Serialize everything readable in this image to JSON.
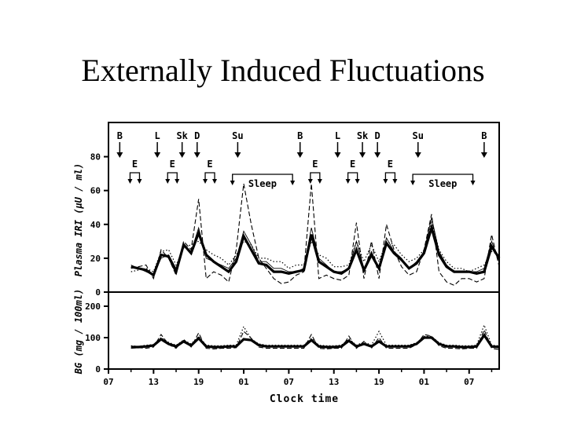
{
  "slide": {
    "title": "Externally Induced Fluctuations"
  },
  "chart_data": {
    "type": "line",
    "xlabel": "Clock time",
    "x_unit": "hours from 07:00 on day 1",
    "x_ticks": [
      {
        "t": 0,
        "label": "07"
      },
      {
        "t": 6,
        "label": "13"
      },
      {
        "t": 12,
        "label": "19"
      },
      {
        "t": 18,
        "label": "01"
      },
      {
        "t": 24,
        "label": "07"
      },
      {
        "t": 30,
        "label": "13"
      },
      {
        "t": 36,
        "label": "19"
      },
      {
        "t": 42,
        "label": "01"
      },
      {
        "t": 48,
        "label": "07"
      }
    ],
    "xlim": [
      0,
      52
    ],
    "meals": [
      {
        "label": "B",
        "t": 1.5
      },
      {
        "label": "L",
        "t": 6.5
      },
      {
        "label": "Sk",
        "t": 9.8
      },
      {
        "label": "D",
        "t": 11.8
      },
      {
        "label": "Su",
        "t": 17.2
      },
      {
        "label": "B",
        "t": 25.5
      },
      {
        "label": "L",
        "t": 30.5
      },
      {
        "label": "Sk",
        "t": 33.8
      },
      {
        "label": "D",
        "t": 35.8
      },
      {
        "label": "Su",
        "t": 41.2
      },
      {
        "label": "B",
        "t": 50.0
      }
    ],
    "exercise": [
      {
        "label": "E",
        "t": 3.5
      },
      {
        "label": "E",
        "t": 8.5
      },
      {
        "label": "E",
        "t": 13.5
      },
      {
        "label": "E",
        "t": 27.5
      },
      {
        "label": "E",
        "t": 32.5
      },
      {
        "label": "E",
        "t": 37.5
      }
    ],
    "sleep": [
      {
        "label": "Sleep",
        "from": 16.5,
        "to": 24.5
      },
      {
        "label": "Sleep",
        "from": 40.5,
        "to": 48.5
      }
    ],
    "panels": [
      {
        "id": "iri",
        "ylabel": "Plasma IRI (µU / ml)",
        "ylim": [
          0,
          90
        ],
        "yticks": [
          0,
          20,
          40,
          60,
          80
        ],
        "series": [
          {
            "style": "bold",
            "x": [
              3,
              5,
              6,
              7,
              8,
              9,
              10,
              11,
              12,
              13,
              14,
              15,
              16,
              17,
              18,
              19,
              20,
              21,
              22,
              23,
              24,
              25,
              26,
              27,
              28,
              29,
              30,
              31,
              32,
              33,
              34,
              35,
              36,
              37,
              38,
              39,
              40,
              41,
              42,
              43,
              44,
              45,
              46,
              47,
              48,
              49,
              50,
              51,
              52
            ],
            "y": [
              15,
              13,
              10,
              22,
              21,
              12,
              28,
              23,
              35,
              22,
              18,
              15,
              12,
              18,
              33,
              25,
              17,
              16,
              12,
              12,
              11,
              12,
              13,
              34,
              18,
              15,
              12,
              11,
              14,
              25,
              13,
              22,
              14,
              29,
              23,
              19,
              14,
              17,
              23,
              38,
              22,
              15,
              12,
              12,
              12,
              11,
              12,
              27,
              20
            ]
          },
          {
            "style": "dashed",
            "x": [
              3,
              5,
              6,
              7,
              8,
              9,
              10,
              11,
              12,
              13,
              14,
              15,
              16,
              17,
              18,
              19,
              20,
              21,
              22,
              23,
              24,
              25,
              26,
              27,
              28,
              29,
              30,
              31,
              32,
              33,
              34,
              35,
              36,
              37,
              38,
              39,
              40,
              41,
              42,
              43,
              44,
              45,
              46,
              47,
              48,
              49,
              50,
              51,
              52
            ],
            "y": [
              14,
              16,
              8,
              25,
              20,
              10,
              30,
              25,
              55,
              8,
              12,
              10,
              6,
              25,
              64,
              40,
              20,
              14,
              8,
              5,
              6,
              10,
              12,
              64,
              8,
              10,
              8,
              7,
              10,
              41,
              8,
              30,
              8,
              40,
              25,
              15,
              10,
              12,
              25,
              46,
              12,
              6,
              4,
              8,
              8,
              6,
              8,
              34,
              15
            ]
          },
          {
            "style": "dotted",
            "x": [
              3,
              5,
              6,
              7,
              8,
              9,
              10,
              11,
              12,
              13,
              14,
              15,
              16,
              17,
              18,
              19,
              20,
              21,
              22,
              23,
              24,
              25,
              26,
              27,
              28,
              29,
              30,
              31,
              32,
              33,
              34,
              35,
              36,
              37,
              38,
              39,
              40,
              41,
              42,
              43,
              44,
              45,
              46,
              47,
              48,
              49,
              50,
              51,
              52
            ],
            "y": [
              12,
              14,
              12,
              24,
              25,
              16,
              26,
              28,
              30,
              25,
              22,
              20,
              16,
              22,
              30,
              28,
              20,
              20,
              18,
              18,
              14,
              16,
              16,
              30,
              22,
              20,
              15,
              15,
              16,
              30,
              18,
              28,
              18,
              30,
              28,
              22,
              18,
              20,
              25,
              42,
              25,
              18,
              14,
              14,
              12,
              14,
              16,
              24,
              22
            ]
          },
          {
            "style": "thin",
            "x": [
              3,
              5,
              6,
              7,
              8,
              9,
              10,
              11,
              12,
              13,
              14,
              15,
              16,
              17,
              18,
              19,
              20,
              21,
              22,
              23,
              24,
              25,
              26,
              27,
              28,
              29,
              30,
              31,
              32,
              33,
              34,
              35,
              36,
              37,
              38,
              39,
              40,
              41,
              42,
              43,
              44,
              45,
              46,
              47,
              48,
              49,
              50,
              51,
              52
            ],
            "y": [
              16,
              12,
              10,
              20,
              22,
              14,
              28,
              24,
              38,
              20,
              18,
              16,
              14,
              20,
              36,
              28,
              18,
              18,
              14,
              14,
              12,
              12,
              14,
              38,
              20,
              16,
              12,
              12,
              14,
              30,
              14,
              24,
              14,
              32,
              24,
              20,
              14,
              18,
              24,
              44,
              24,
              16,
              12,
              12,
              12,
              12,
              14,
              30,
              18
            ]
          }
        ]
      },
      {
        "id": "bg",
        "ylabel": "BG (mg / 100ml)",
        "ylim": [
          0,
          210
        ],
        "yticks": [
          0,
          100,
          200
        ],
        "series": [
          {
            "style": "bold",
            "x": [
              3,
              4,
              5,
              6,
              7,
              8,
              9,
              10,
              11,
              12,
              13,
              14,
              15,
              16,
              17,
              18,
              19,
              20,
              21,
              22,
              23,
              24,
              25,
              26,
              27,
              28,
              29,
              30,
              31,
              32,
              33,
              34,
              35,
              36,
              37,
              38,
              39,
              40,
              41,
              42,
              43,
              44,
              45,
              46,
              47,
              48,
              49,
              50,
              51,
              52
            ],
            "y": [
              70,
              70,
              72,
              75,
              95,
              80,
              72,
              88,
              75,
              98,
              72,
              70,
              70,
              72,
              72,
              95,
              92,
              76,
              72,
              72,
              72,
              72,
              72,
              72,
              92,
              72,
              70,
              70,
              72,
              90,
              72,
              80,
              72,
              88,
              72,
              72,
              72,
              72,
              80,
              100,
              100,
              80,
              72,
              72,
              70,
              70,
              72,
              108,
              72,
              70
            ]
          },
          {
            "style": "dashed",
            "x": [
              3,
              4,
              5,
              6,
              7,
              8,
              9,
              10,
              11,
              12,
              13,
              14,
              15,
              16,
              17,
              18,
              19,
              20,
              21,
              22,
              23,
              24,
              25,
              26,
              27,
              28,
              29,
              30,
              31,
              32,
              33,
              34,
              35,
              36,
              37,
              38,
              39,
              40,
              41,
              42,
              43,
              44,
              45,
              46,
              47,
              48,
              49,
              50,
              51,
              52
            ],
            "y": [
              66,
              68,
              66,
              70,
              110,
              78,
              66,
              95,
              70,
              115,
              66,
              64,
              66,
              66,
              68,
              120,
              98,
              70,
              66,
              66,
              66,
              66,
              66,
              66,
              110,
              66,
              64,
              66,
              66,
              105,
              66,
              88,
              66,
              100,
              66,
              66,
              66,
              66,
              78,
              110,
              105,
              74,
              66,
              66,
              64,
              66,
              66,
              125,
              66,
              62
            ]
          },
          {
            "style": "dotted",
            "x": [
              3,
              4,
              5,
              6,
              7,
              8,
              9,
              10,
              11,
              12,
              13,
              14,
              15,
              16,
              17,
              18,
              19,
              20,
              21,
              22,
              23,
              24,
              25,
              26,
              27,
              28,
              29,
              30,
              31,
              32,
              33,
              34,
              35,
              36,
              37,
              38,
              39,
              40,
              41,
              42,
              43,
              44,
              45,
              46,
              47,
              48,
              49,
              50,
              51,
              52
            ],
            "y": [
              74,
              72,
              76,
              78,
              100,
              85,
              76,
              92,
              80,
              104,
              76,
              74,
              74,
              76,
              76,
              135,
              96,
              80,
              76,
              76,
              76,
              76,
              76,
              76,
              98,
              76,
              74,
              74,
              76,
              96,
              76,
              86,
              76,
              120,
              76,
              76,
              76,
              76,
              84,
              104,
              104,
              84,
              76,
              76,
              74,
              74,
              76,
              140,
              76,
              74
            ]
          }
        ]
      }
    ]
  }
}
